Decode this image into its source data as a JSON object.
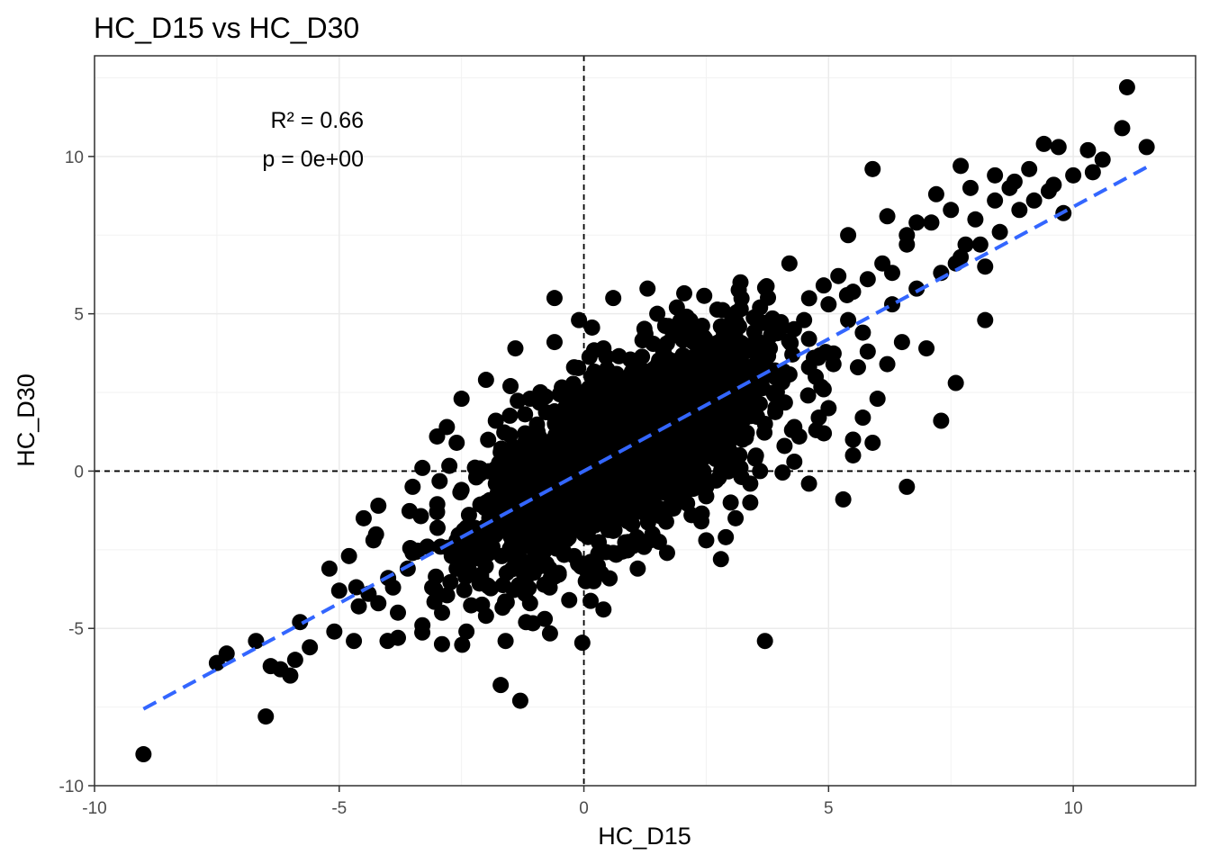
{
  "chart_data": {
    "type": "scatter",
    "title": "HC_D15 vs HC_D30",
    "xlabel": "HC_D15",
    "ylabel": "HC_D30",
    "xlim": [
      -10,
      12.5
    ],
    "ylim": [
      -10,
      13.2
    ],
    "xticks": [
      -10,
      -5,
      0,
      5,
      10
    ],
    "yticks": [
      -10,
      -5,
      0,
      5,
      10
    ],
    "xtick_labels": [
      "-10",
      "-5",
      "0",
      "5",
      "10"
    ],
    "ytick_labels": [
      "-10",
      "-5",
      "0",
      "5",
      "10"
    ],
    "grid": true,
    "reference_lines": {
      "x": 0,
      "y": 0
    },
    "annotations": [
      "R² = 0.66",
      "p = 0e+00"
    ],
    "fit_line": {
      "slope": 0.84,
      "intercept": 0.0,
      "x_range": [
        -9.0,
        11.5
      ],
      "color": "#3366FF"
    },
    "point_color": "#000000",
    "series": [
      {
        "values_note_excluded": false,
        "points": [
          [
            11.1,
            12.2
          ],
          [
            11.0,
            10.9
          ],
          [
            11.5,
            10.3
          ],
          [
            10.3,
            10.2
          ],
          [
            9.4,
            10.4
          ],
          [
            9.7,
            10.3
          ],
          [
            10.6,
            9.9
          ],
          [
            10.0,
            9.4
          ],
          [
            9.6,
            9.1
          ],
          [
            10.4,
            9.5
          ],
          [
            9.8,
            8.2
          ],
          [
            8.7,
            9.0
          ],
          [
            8.4,
            9.4
          ],
          [
            7.9,
            9.0
          ],
          [
            7.7,
            9.7
          ],
          [
            7.2,
            8.8
          ],
          [
            6.8,
            7.9
          ],
          [
            6.2,
            8.1
          ],
          [
            5.9,
            9.6
          ],
          [
            5.4,
            7.5
          ],
          [
            6.6,
            7.2
          ],
          [
            7.6,
            6.6
          ],
          [
            8.2,
            6.5
          ],
          [
            7.8,
            7.2
          ],
          [
            6.3,
            6.3
          ],
          [
            5.2,
            6.2
          ],
          [
            4.9,
            5.9
          ],
          [
            4.2,
            6.6
          ],
          [
            3.6,
            5.2
          ],
          [
            3.2,
            6.0
          ],
          [
            2.8,
            4.6
          ],
          [
            3.5,
            4.9
          ],
          [
            5.4,
            4.8
          ],
          [
            5.8,
            3.8
          ],
          [
            6.2,
            3.4
          ],
          [
            6.0,
            2.3
          ],
          [
            7.0,
            3.9
          ],
          [
            6.5,
            4.1
          ],
          [
            5.6,
            3.3
          ],
          [
            8.2,
            4.8
          ],
          [
            7.6,
            2.8
          ],
          [
            7.3,
            1.6
          ],
          [
            6.6,
            -0.5
          ],
          [
            5.0,
            2.0
          ],
          [
            4.3,
            1.4
          ],
          [
            4.8,
            1.7
          ],
          [
            5.5,
            0.5
          ],
          [
            5.3,
            -0.9
          ],
          [
            5.7,
            1.7
          ],
          [
            5.5,
            1.0
          ],
          [
            5.9,
            0.9
          ],
          [
            4.6,
            -0.4
          ],
          [
            4.3,
            0.3
          ],
          [
            3.7,
            1.5
          ],
          [
            3.7,
            -5.4
          ],
          [
            3.2,
            0.1
          ],
          [
            3.0,
            -1.0
          ],
          [
            2.9,
            -2.1
          ],
          [
            3.1,
            -1.5
          ],
          [
            2.8,
            -2.8
          ],
          [
            2.4,
            -1.6
          ],
          [
            2.1,
            4.5
          ],
          [
            1.9,
            5.2
          ],
          [
            1.3,
            5.8
          ],
          [
            1.5,
            5.0
          ],
          [
            0.6,
            5.5
          ],
          [
            -0.6,
            5.5
          ],
          [
            -0.1,
            4.8
          ],
          [
            -0.6,
            4.1
          ],
          [
            -1.4,
            3.9
          ],
          [
            -1.5,
            2.7
          ],
          [
            -2.0,
            2.9
          ],
          [
            -2.5,
            2.3
          ],
          [
            -3.0,
            1.1
          ],
          [
            -2.8,
            1.4
          ],
          [
            -2.6,
            0.9
          ],
          [
            -3.3,
            0.1
          ],
          [
            -3.5,
            -0.5
          ],
          [
            -4.2,
            -1.1
          ],
          [
            -4.5,
            -1.5
          ],
          [
            -4.3,
            -2.2
          ],
          [
            -4.8,
            -2.7
          ],
          [
            -5.2,
            -3.1
          ],
          [
            -5.0,
            -3.8
          ],
          [
            -4.6,
            -4.3
          ],
          [
            -4.7,
            -5.4
          ],
          [
            -5.1,
            -5.1
          ],
          [
            -5.6,
            -5.6
          ],
          [
            -5.8,
            -4.8
          ],
          [
            -5.9,
            -6.0
          ],
          [
            -6.0,
            -6.5
          ],
          [
            -6.2,
            -6.3
          ],
          [
            -6.4,
            -6.2
          ],
          [
            -6.5,
            -7.8
          ],
          [
            -6.7,
            -5.4
          ],
          [
            -7.3,
            -5.8
          ],
          [
            -7.5,
            -6.1
          ],
          [
            -9.0,
            -9.0
          ],
          [
            -1.7,
            -6.8
          ],
          [
            -1.3,
            -7.3
          ],
          [
            -1.6,
            -5.4
          ],
          [
            -0.8,
            -4.7
          ],
          [
            0.4,
            -4.4
          ],
          [
            -2.4,
            -5.1
          ],
          [
            -2.9,
            -5.5
          ],
          [
            -3.3,
            -4.9
          ],
          [
            -3.8,
            -5.3
          ],
          [
            -3.8,
            -4.5
          ],
          [
            -4.2,
            -4.2
          ],
          [
            -3.9,
            -3.7
          ],
          [
            -3.6,
            -3.1
          ],
          [
            -3.2,
            -2.4
          ],
          [
            -2.1,
            -3.3
          ],
          [
            -1.1,
            -4.2
          ],
          [
            -0.3,
            -4.1
          ],
          [
            0.2,
            -3.5
          ],
          [
            1.1,
            -3.1
          ],
          [
            1.7,
            -2.6
          ],
          [
            2.5,
            -2.2
          ],
          [
            3.4,
            -1.0
          ],
          [
            -2.0,
            -4.6
          ],
          [
            -1.2,
            -3.9
          ],
          [
            -0.7,
            -3.1
          ],
          [
            0.6,
            -2.6
          ],
          [
            1.4,
            -2.0
          ],
          [
            2.2,
            -1.4
          ],
          [
            -3.0,
            -1.3
          ],
          [
            -2.2,
            -0.2
          ],
          [
            -1.7,
            0.6
          ],
          [
            -1.2,
            1.2
          ],
          [
            -0.6,
            1.9
          ],
          [
            0.3,
            2.6
          ],
          [
            1.0,
            3.1
          ],
          [
            1.6,
            3.6
          ],
          [
            2.3,
            3.2
          ],
          [
            2.8,
            2.4
          ],
          [
            3.3,
            2.8
          ],
          [
            3.9,
            3.2
          ],
          [
            -2.4,
            -1.8
          ],
          [
            -1.6,
            -1.2
          ],
          [
            -1.0,
            -0.5
          ],
          [
            -0.4,
            0.2
          ],
          [
            0.2,
            0.8
          ],
          [
            0.8,
            1.4
          ],
          [
            1.4,
            2.0
          ],
          [
            2.0,
            2.4
          ],
          [
            2.6,
            1.6
          ],
          [
            3.0,
            1.0
          ],
          [
            3.5,
            0.4
          ],
          [
            4.0,
            2.2
          ],
          [
            -2.7,
            -2.7
          ],
          [
            -1.9,
            -2.2
          ],
          [
            -1.3,
            -1.6
          ],
          [
            -0.8,
            -0.9
          ],
          [
            -0.2,
            -0.3
          ],
          [
            0.5,
            0.3
          ],
          [
            1.1,
            0.9
          ],
          [
            1.7,
            1.3
          ],
          [
            2.3,
            0.7
          ],
          [
            2.9,
            0.2
          ],
          [
            3.4,
            -0.4
          ],
          [
            4.1,
            0.8
          ],
          [
            -1.5,
            0.0
          ],
          [
            -0.9,
            0.6
          ],
          [
            -0.3,
            1.2
          ],
          [
            0.3,
            1.8
          ],
          [
            0.9,
            2.4
          ],
          [
            1.5,
            2.9
          ],
          [
            2.1,
            3.4
          ],
          [
            2.7,
            3.9
          ],
          [
            -0.5,
            -1.8
          ],
          [
            0.1,
            -1.2
          ],
          [
            0.7,
            -0.6
          ],
          [
            1.3,
            0.0
          ],
          [
            1.9,
            0.4
          ],
          [
            2.5,
            -0.8
          ],
          [
            -1.8,
            1.6
          ],
          [
            -1.1,
            2.3
          ],
          [
            -0.2,
            3.3
          ],
          [
            0.4,
            3.9
          ],
          [
            -0.9,
            -2.6
          ],
          [
            0.0,
            -2.0
          ],
          [
            0.9,
            -1.6
          ],
          [
            1.8,
            -1.0
          ],
          [
            2.7,
            -0.3
          ],
          [
            3.6,
            0.0
          ],
          [
            4.4,
            1.1
          ],
          [
            4.9,
            2.6
          ],
          [
            5.1,
            3.4
          ],
          [
            4.6,
            4.2
          ],
          [
            5.7,
            4.4
          ],
          [
            6.3,
            5.3
          ],
          [
            6.8,
            5.8
          ],
          [
            7.3,
            6.3
          ],
          [
            7.7,
            6.8
          ],
          [
            8.1,
            7.2
          ],
          [
            8.5,
            7.6
          ],
          [
            8.9,
            8.3
          ],
          [
            9.2,
            8.6
          ],
          [
            9.5,
            8.9
          ],
          [
            6.1,
            6.6
          ],
          [
            6.6,
            7.5
          ],
          [
            7.1,
            7.9
          ],
          [
            7.5,
            8.3
          ],
          [
            8.0,
            8.0
          ],
          [
            8.4,
            8.6
          ],
          [
            8.8,
            9.2
          ],
          [
            9.1,
            9.6
          ],
          [
            5.0,
            5.3
          ],
          [
            5.5,
            5.7
          ],
          [
            5.8,
            6.1
          ],
          [
            4.5,
            4.8
          ],
          [
            4.0,
            4.6
          ],
          [
            3.3,
            3.8
          ],
          [
            3.8,
            3.9
          ],
          [
            4.7,
            3.6
          ],
          [
            -3.5,
            -2.6
          ],
          [
            -4.0,
            -3.4
          ],
          [
            -4.4,
            -3.9
          ],
          [
            -3.1,
            -3.7
          ],
          [
            -2.6,
            -3.1
          ],
          [
            -2.2,
            -2.5
          ],
          [
            -2.0,
            -1.0
          ],
          [
            -2.5,
            -0.6
          ],
          [
            -1.8,
            -0.4
          ],
          [
            -1.4,
            -2.9
          ],
          [
            -0.2,
            -2.7
          ],
          [
            0.6,
            -1.9
          ]
        ]
      }
    ]
  }
}
